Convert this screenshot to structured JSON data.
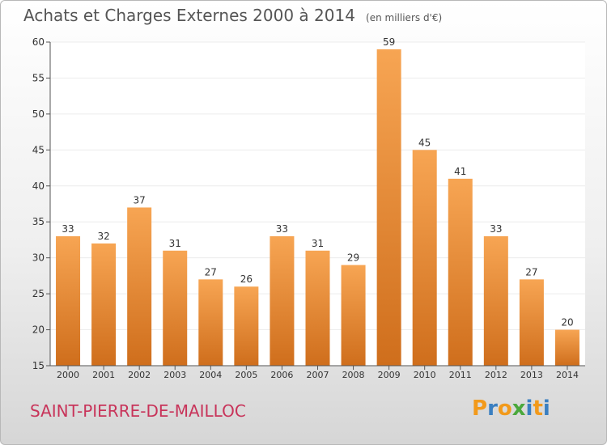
{
  "title": "Achats et Charges Externes 2000 à 2014",
  "subtitle": "(en milliers d'€)",
  "location_name": "SAINT-PIERRE-DE-MAILLOC",
  "brand": {
    "letters": [
      "P",
      "r",
      "o",
      "x",
      "i",
      "t",
      "i"
    ],
    "colors": [
      "#f29a1b",
      "#3a7fc1",
      "#f29a1b",
      "#4aa83c",
      "#3a7fc1",
      "#f29a1b",
      "#3a7fc1"
    ]
  },
  "colors": {
    "bar_top": "#f7a553",
    "bar_bottom": "#cf6e1c",
    "axis": "#555555",
    "grid": "#ececec",
    "text": "#333333"
  },
  "chart_data": {
    "type": "bar",
    "title": "Achats et Charges Externes 2000 à 2014",
    "subtitle": "(en milliers d'€)",
    "categories": [
      "2000",
      "2001",
      "2002",
      "2003",
      "2004",
      "2005",
      "2006",
      "2007",
      "2008",
      "2009",
      "2010",
      "2011",
      "2012",
      "2013",
      "2014"
    ],
    "values": [
      33,
      32,
      37,
      31,
      27,
      26,
      33,
      31,
      29,
      59,
      45,
      41,
      33,
      27,
      20
    ],
    "ylim": [
      15,
      60
    ],
    "yticks": [
      15,
      20,
      25,
      30,
      35,
      40,
      45,
      50,
      55,
      60
    ],
    "grid": true,
    "data_labels": true
  }
}
